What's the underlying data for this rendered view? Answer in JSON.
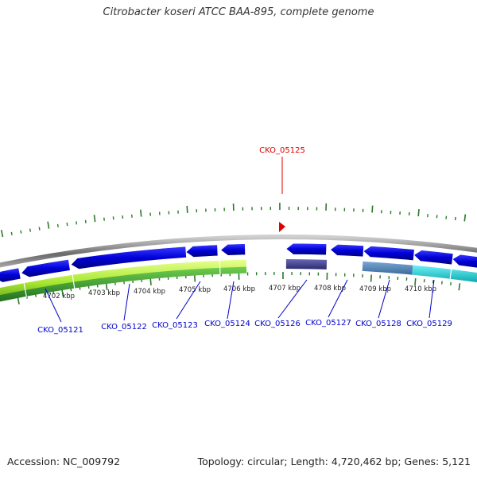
{
  "title": "Citrobacter koseri ATCC BAA-895, complete genome",
  "highlight_label": "CKO_05125",
  "footer": {
    "accession": "Accession: NC_009792",
    "topology": "Topology: circular; Length: 4,720,462 bp; Genes: 5,121"
  },
  "kbp_labels": [
    "4702 kbp",
    "4703 kbp",
    "4704 kbp",
    "4705 kbp",
    "4706 kbp",
    "4707 kbp",
    "4708 kbp",
    "4709 kbp",
    "4710 kbp"
  ],
  "gene_labels": [
    "CKO_05121",
    "CKO_05122",
    "CKO_05123",
    "CKO_05124",
    "CKO_05126",
    "CKO_05127",
    "CKO_05128",
    "CKO_05129"
  ],
  "colors": {
    "forward_gene": "#0000e0",
    "highlight": "#e00000",
    "gene_label": "#0000cc",
    "tick": "#2a7a2a",
    "backbone": "#888888",
    "track_green": "#3c9a2a",
    "track_lime": "#b8f040",
    "track_navy": "#3c3c8c",
    "track_steel": "#4f7fb0",
    "track_cyan": "#10c8d0"
  }
}
